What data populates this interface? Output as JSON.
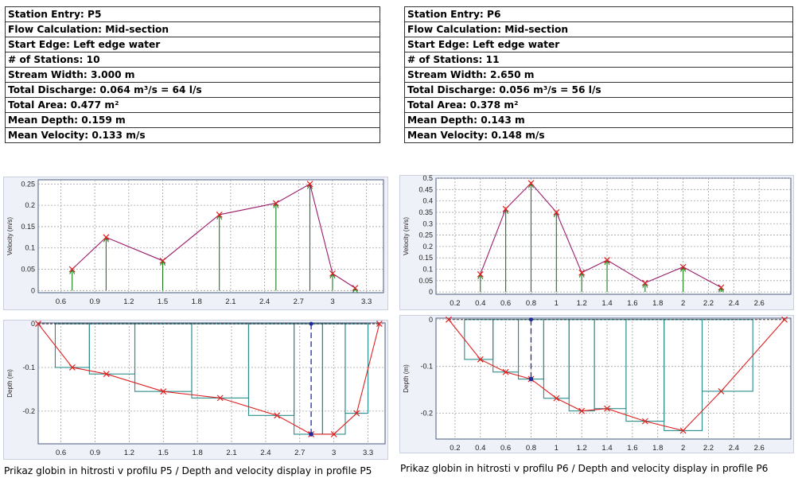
{
  "profiles": [
    {
      "summary": [
        "Station Entry: P5",
        "Flow Calculation: Mid-section",
        "Start Edge: Left edge water",
        "# of Stations: 10",
        "Stream Width: 3.000 m",
        "Total Discharge: 0.064 m³/s = 64 l/s",
        "Total Area: 0.477 m²",
        "Mean Depth: 0.159 m",
        "Mean Velocity: 0.133 m/s"
      ],
      "caption": "Prikaz globin in hitrosti v profilu P5 / Depth and velocity display in profile P5"
    },
    {
      "summary": [
        "Station Entry: P6",
        "Flow Calculation: Mid-section",
        "Start Edge: Left edge water",
        "# of Stations: 11",
        "Stream Width: 2.650 m",
        "Total Discharge: 0.056 m³/s = 56 l/s",
        "Total Area: 0.378 m²",
        "Mean Depth: 0.143 m",
        "Mean Velocity: 0.148 m/s"
      ],
      "caption": "Prikaz globin in hitrosti v profilu P6 / Depth and velocity display in profile P6"
    }
  ],
  "colors": {
    "velocity_line": "#9b1b6a",
    "marker": "#e02020",
    "stem": "#1a7a1a",
    "bed_line": "#e02020",
    "step": "#2a8c8c",
    "current_station": "#1d2a9c",
    "grid": "#a0a0a0",
    "plot_frame": "#4a5a80"
  },
  "chart_data": [
    {
      "id": "p5-velocity",
      "type": "line",
      "title": "",
      "xlabel": "",
      "ylabel": "Velocity (m/s)",
      "xlim": [
        0.4,
        3.45
      ],
      "ylim": [
        -0.005,
        0.26
      ],
      "xticks": [
        0.6,
        0.9,
        1.2,
        1.5,
        1.8,
        2.1,
        2.4,
        2.7,
        3,
        3.3
      ],
      "xtick_labels": [
        "0.6",
        "0.9",
        "1.2",
        "1.5",
        "1.8",
        "2.1",
        "2.4",
        "2.7",
        "3",
        "3.3"
      ],
      "yticks": [
        0,
        0.05,
        0.1,
        0.15,
        0.2,
        0.25
      ],
      "ytick_labels": [
        "0",
        "0.05",
        "0.1",
        "0.15",
        "0.2",
        "0.25"
      ],
      "x": [
        0.7,
        1.0,
        1.5,
        2.0,
        2.5,
        2.8,
        3.0,
        3.2
      ],
      "y": [
        0.05,
        0.125,
        0.07,
        0.178,
        0.205,
        0.25,
        0.04,
        0.006
      ]
    },
    {
      "id": "p5-depth",
      "type": "line",
      "title": "",
      "xlabel": "",
      "ylabel": "Depth (m)",
      "xlim": [
        0.4,
        3.45
      ],
      "ylim": [
        -0.275,
        0.002
      ],
      "xticks": [
        0.6,
        0.9,
        1.2,
        1.5,
        1.8,
        2.1,
        2.4,
        2.7,
        3,
        3.3
      ],
      "xtick_labels": [
        "0.6",
        "0.9",
        "1.2",
        "1.5",
        "1.8",
        "2.1",
        "2.4",
        "2.7",
        "3",
        "3.3"
      ],
      "yticks": [
        0,
        -0.1,
        -0.2
      ],
      "ytick_labels": [
        "0",
        "-0.1",
        "-0.2"
      ],
      "x": [
        0.4,
        0.7,
        1.0,
        1.5,
        2.0,
        2.5,
        2.8,
        3.0,
        3.2,
        3.4
      ],
      "y": [
        0.0,
        -0.1,
        -0.115,
        -0.155,
        -0.17,
        -0.21,
        -0.253,
        -0.253,
        -0.205,
        0.0
      ],
      "current_station": 2.8
    },
    {
      "id": "p6-velocity",
      "type": "line",
      "title": "",
      "xlabel": "",
      "ylabel": "Velocity (m/s)",
      "xlim": [
        0.05,
        2.85
      ],
      "ylim": [
        -0.01,
        0.5
      ],
      "xticks": [
        0.2,
        0.4,
        0.6,
        0.8,
        1,
        1.2,
        1.4,
        1.6,
        1.8,
        2,
        2.2,
        2.4,
        2.6
      ],
      "xtick_labels": [
        "0.2",
        "0.4",
        "0.6",
        "0.8",
        "1",
        "1.2",
        "1.4",
        "1.6",
        "1.8",
        "2",
        "2.2",
        "2.4",
        "2.6"
      ],
      "yticks": [
        0,
        0.05,
        0.1,
        0.15,
        0.2,
        0.25,
        0.3,
        0.35,
        0.4,
        0.45,
        0.5
      ],
      "ytick_labels": [
        "0",
        "0.05",
        "0.1",
        "0.15",
        "0.2",
        "0.25",
        "0.3",
        "0.35",
        "0.4",
        "0.45",
        "0.5"
      ],
      "x": [
        0.4,
        0.6,
        0.8,
        1.0,
        1.2,
        1.4,
        1.7,
        2.0,
        2.3
      ],
      "y": [
        0.078,
        0.365,
        0.478,
        0.35,
        0.085,
        0.14,
        0.04,
        0.11,
        0.02
      ]
    },
    {
      "id": "p6-depth",
      "type": "line",
      "title": "",
      "xlabel": "",
      "ylabel": "Depth (m)",
      "xlim": [
        0.05,
        2.85
      ],
      "ylim": [
        -0.255,
        0.003
      ],
      "xticks": [
        0.2,
        0.4,
        0.6,
        0.8,
        1,
        1.2,
        1.4,
        1.6,
        1.8,
        2,
        2.2,
        2.4,
        2.6
      ],
      "xtick_labels": [
        "0.2",
        "0.4",
        "0.6",
        "0.8",
        "1",
        "1.2",
        "1.4",
        "1.6",
        "1.8",
        "2",
        "2.2",
        "2.4",
        "2.6"
      ],
      "yticks": [
        0,
        -0.1,
        -0.2
      ],
      "ytick_labels": [
        "0",
        "-0.1",
        "-0.2"
      ],
      "x": [
        0.15,
        0.4,
        0.6,
        0.8,
        1.0,
        1.2,
        1.4,
        1.7,
        2.0,
        2.3,
        2.8
      ],
      "y": [
        0.0,
        -0.085,
        -0.112,
        -0.127,
        -0.168,
        -0.195,
        -0.19,
        -0.217,
        -0.237,
        -0.153,
        0.0
      ],
      "current_station": 0.8
    }
  ]
}
